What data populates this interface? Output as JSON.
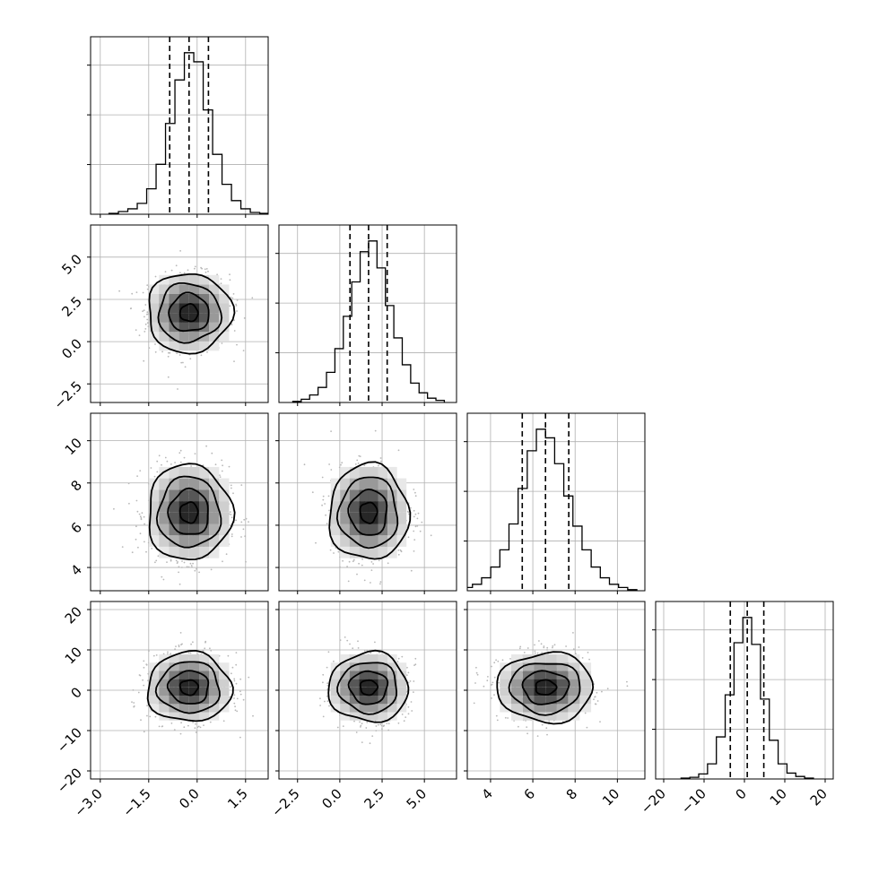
{
  "chart_data": {
    "type": "corner",
    "grid": true,
    "params": [
      {
        "mean": -0.25,
        "sd": 0.62,
        "range": [
          -3.3,
          2.2
        ],
        "ticks": [
          -3.0,
          -1.5,
          0.0,
          1.5
        ],
        "tick_labels": [
          "−3.0",
          "−1.5",
          "0.0",
          "1.5"
        ],
        "quantiles": [
          -0.85,
          -0.25,
          0.35
        ]
      },
      {
        "mean": 1.7,
        "sd": 1.12,
        "range": [
          -3.6,
          6.9
        ],
        "ticks": [
          -2.5,
          0.0,
          2.5,
          5.0
        ],
        "tick_labels": [
          "−2.5",
          "0.0",
          "2.5",
          "5.0"
        ],
        "quantiles": [
          0.6,
          1.7,
          2.8
        ]
      },
      {
        "mean": 6.6,
        "sd": 1.08,
        "range": [
          2.9,
          11.3
        ],
        "ticks": [
          4,
          6,
          8,
          10
        ],
        "tick_labels": [
          "4",
          "6",
          "8",
          "10"
        ],
        "quantiles": [
          5.5,
          6.6,
          7.7
        ]
      },
      {
        "mean": 0.7,
        "sd": 4.1,
        "range": [
          -22.0,
          22.0
        ],
        "ticks": [
          -20,
          -10,
          0,
          10,
          20
        ],
        "tick_labels": [
          "−20",
          "−10",
          "0",
          "10",
          "20"
        ],
        "quantiles": [
          -3.5,
          0.7,
          4.8
        ]
      }
    ],
    "histograms": [
      [
        1,
        3,
        6,
        12,
        28,
        55,
        100,
        148,
        178,
        168,
        115,
        66,
        33,
        15,
        6,
        2,
        1
      ],
      [
        1,
        3,
        7,
        14,
        28,
        50,
        80,
        112,
        140,
        150,
        125,
        90,
        60,
        35,
        18,
        9,
        4,
        2
      ],
      [
        1,
        3,
        6,
        12,
        22,
        38,
        62,
        95,
        130,
        150,
        142,
        118,
        88,
        60,
        38,
        22,
        12,
        6,
        3,
        1
      ],
      [
        1,
        2,
        6,
        18,
        50,
        100,
        162,
        192,
        160,
        95,
        46,
        18,
        7,
        3,
        1
      ]
    ]
  }
}
